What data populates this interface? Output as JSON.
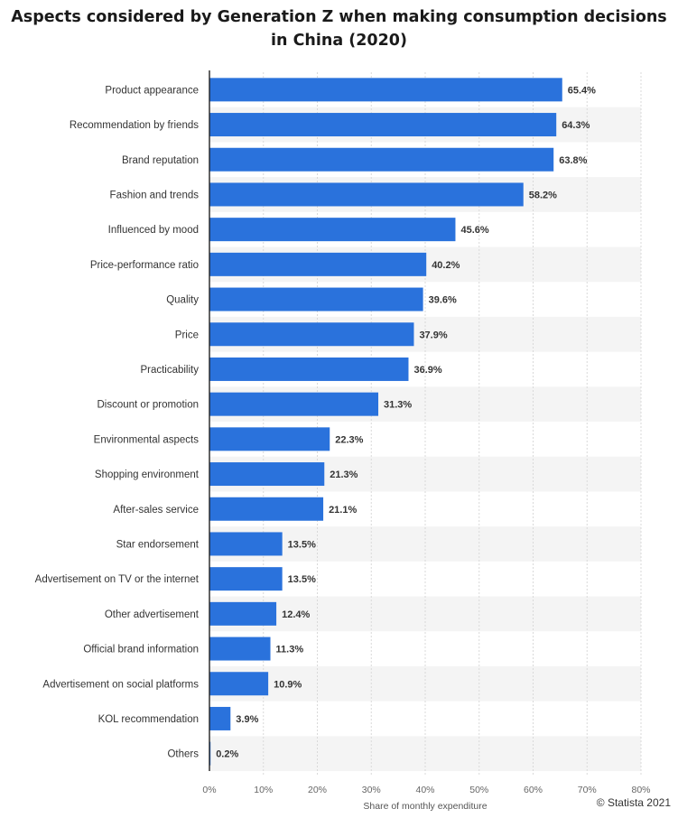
{
  "chart_data": {
    "type": "bar",
    "orientation": "horizontal",
    "title": "Aspects considered by Generation Z when making consumption decisions in China (2020)",
    "title_lines": [
      "Aspects considered by Generation Z when making consumption decisions",
      "in China (2020)"
    ],
    "categories": [
      "Product appearance",
      "Recommendation by friends",
      "Brand reputation",
      "Fashion and trends",
      "Influenced by mood",
      "Price-performance ratio",
      "Quality",
      "Price",
      "Practicability",
      "Discount or promotion",
      "Environmental aspects",
      "Shopping environment",
      "After-sales service",
      "Star endorsement",
      "Advertisement on TV or the internet",
      "Other advertisement",
      "Official brand information",
      "Advertisement on social platforms",
      "KOL recommendation",
      "Others"
    ],
    "values": [
      65.4,
      64.3,
      63.8,
      58.2,
      45.6,
      40.2,
      39.6,
      37.9,
      36.9,
      31.3,
      22.3,
      21.3,
      21.1,
      13.5,
      13.5,
      12.4,
      11.3,
      10.9,
      3.9,
      0.2
    ],
    "value_labels": [
      "65.4%",
      "64.3%",
      "63.8%",
      "58.2%",
      "45.6%",
      "40.2%",
      "39.6%",
      "37.9%",
      "36.9%",
      "31.3%",
      "22.3%",
      "21.3%",
      "21.1%",
      "13.5%",
      "13.5%",
      "12.4%",
      "11.3%",
      "10.9%",
      "3.9%",
      "0.2%"
    ],
    "xlabel": "Share of monthly expenditure",
    "ylabel": "",
    "xlim": [
      0,
      80
    ],
    "ticks": [
      0,
      10,
      20,
      30,
      40,
      50,
      60,
      70,
      80
    ],
    "tick_labels": [
      "0%",
      "10%",
      "20%",
      "30%",
      "40%",
      "50%",
      "60%",
      "70%",
      "80%"
    ],
    "grid": true,
    "legend": "none",
    "bar_color": "#2a72dc",
    "stripe_color": "#f4f4f4"
  },
  "credit": "© Statista 2021"
}
